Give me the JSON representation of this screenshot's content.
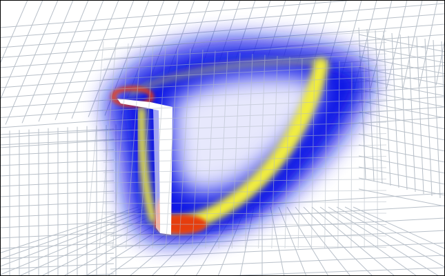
{
  "figure": {
    "description_visible_text": [],
    "colors": {
      "background": "#ffffff",
      "frame": "#000000",
      "grid_line": "#b4bcc6",
      "field_low": "#0a19e6",
      "field_mid": "#f2ee3c",
      "field_high": "#e63c0a",
      "slot": "#ffffff"
    },
    "colormap": "blue-yellow-red",
    "mesh": "structured-grid"
  }
}
